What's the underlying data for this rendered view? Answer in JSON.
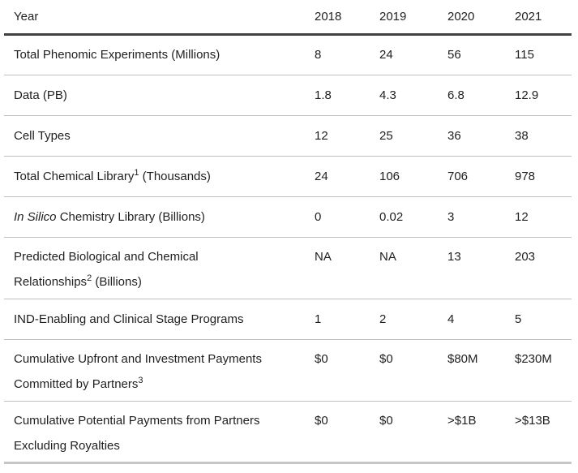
{
  "table": {
    "header": {
      "label": "Year",
      "years": [
        "2018",
        "2019",
        "2020",
        "2021"
      ]
    },
    "rows": [
      {
        "label": [
          {
            "t": "Total Phenomic Experiments (Millions)"
          }
        ],
        "values": [
          "8",
          "24",
          "56",
          "115"
        ],
        "lines": 1
      },
      {
        "label": [
          {
            "t": "Data (PB)"
          }
        ],
        "values": [
          "1.8",
          "4.3",
          "6.8",
          "12.9"
        ],
        "lines": 1
      },
      {
        "label": [
          {
            "t": "Cell Types"
          }
        ],
        "values": [
          "12",
          "25",
          "36",
          "38"
        ],
        "lines": 1
      },
      {
        "label": [
          {
            "t": "Total Chemical Library"
          },
          {
            "t": "1",
            "s": "sup"
          },
          {
            "t": " (Thousands)"
          }
        ],
        "values": [
          "24",
          "106",
          "706",
          "978"
        ],
        "lines": 1
      },
      {
        "label": [
          {
            "t": "In Silico",
            "s": "italic"
          },
          {
            "t": " Chemistry Library (Billions)"
          }
        ],
        "values": [
          "0",
          "0.02",
          "3",
          "12"
        ],
        "lines": 1
      },
      {
        "label": [
          {
            "t": "Predicted Biological and Chemical"
          },
          {
            "t": "",
            "s": "br"
          },
          {
            "t": "Relationships"
          },
          {
            "t": "2",
            "s": "sup"
          },
          {
            "t": " (Billions)"
          }
        ],
        "values": [
          "NA",
          "NA",
          "13",
          "203"
        ],
        "lines": 2
      },
      {
        "label": [
          {
            "t": "IND-Enabling and Clinical Stage Programs"
          }
        ],
        "values": [
          "1",
          "2",
          "4",
          "5"
        ],
        "lines": 1
      },
      {
        "label": [
          {
            "t": "Cumulative Upfront and Investment Payments"
          },
          {
            "t": "",
            "s": "br"
          },
          {
            "t": "Committed by Partners"
          },
          {
            "t": "3",
            "s": "sup"
          }
        ],
        "values": [
          "$0",
          "$0",
          "$80M",
          "$230M"
        ],
        "lines": 2
      },
      {
        "label": [
          {
            "t": "Cumulative Potential Payments from Partners"
          },
          {
            "t": "",
            "s": "br"
          },
          {
            "t": "Excluding Royalties"
          }
        ],
        "values": [
          "$0",
          "$0",
          ">$1B",
          ">$13B"
        ],
        "lines": 2
      }
    ]
  },
  "colors": {
    "header_rule": "#404040",
    "row_rule": "#bfbfbf",
    "bottom_rule": "#c6c6c6",
    "text": "#1f1f1f",
    "background": "#ffffff"
  }
}
